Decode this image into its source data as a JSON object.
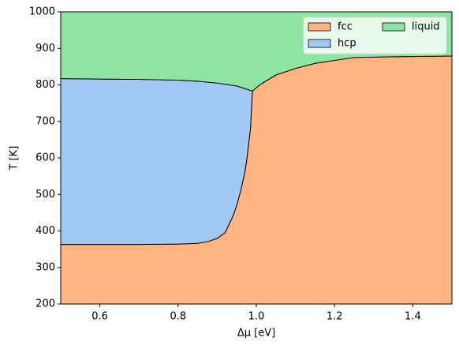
{
  "chart_data": {
    "type": "phase-diagram",
    "xlabel": "Δμ [eV]",
    "ylabel": "T [K]",
    "xlim": [
      0.5,
      1.5
    ],
    "ylim": [
      200,
      1000
    ],
    "xticks": [
      0.6,
      0.8,
      {
        "value": 1,
        "label": "1.0"
      },
      1.2,
      1.4
    ],
    "yticks": [
      200,
      300,
      400,
      500,
      600,
      700,
      800,
      900,
      1000
    ],
    "legend": "upper right",
    "series": [
      {
        "name": "fcc",
        "color": "#ffb482",
        "fill": "below",
        "x": [
          0.5,
          0.6,
          0.7,
          0.8,
          0.85,
          0.88,
          0.9,
          0.92,
          0.94,
          0.95,
          0.96,
          0.97,
          0.975,
          0.985,
          0.99,
          1.01,
          1.05,
          1.1,
          1.15,
          1.25,
          1.35,
          1.5
        ],
        "values": [
          363,
          363,
          363,
          364,
          366,
          372,
          380,
          395,
          440,
          470,
          510,
          557,
          590,
          680,
          783,
          801,
          827,
          845,
          859,
          875,
          877,
          879
        ]
      },
      {
        "name": "hcp",
        "color": "#a1c9f4",
        "fill": "closed",
        "x": [
          0.5,
          0.6,
          0.7,
          0.8,
          0.85,
          0.9,
          0.95,
          0.99,
          0.985,
          0.975,
          0.97,
          0.96,
          0.95,
          0.94,
          0.92,
          0.9,
          0.88,
          0.85,
          0.8,
          0.7,
          0.6,
          0.5
        ],
        "values": [
          817,
          816,
          815,
          813,
          810,
          805,
          797,
          783,
          680,
          590,
          557,
          510,
          470,
          440,
          395,
          380,
          372,
          366,
          364,
          363,
          363,
          363
        ]
      },
      {
        "name": "liquid",
        "color": "#8de5a1",
        "fill": "above",
        "x": [
          0.5,
          0.6,
          0.7,
          0.8,
          0.85,
          0.9,
          0.95,
          0.99,
          1.01,
          1.05,
          1.1,
          1.15,
          1.25,
          1.35,
          1.5
        ],
        "values": [
          817,
          816,
          815,
          813,
          810,
          805,
          797,
          783,
          801,
          827,
          845,
          859,
          875,
          877,
          879
        ]
      }
    ]
  }
}
